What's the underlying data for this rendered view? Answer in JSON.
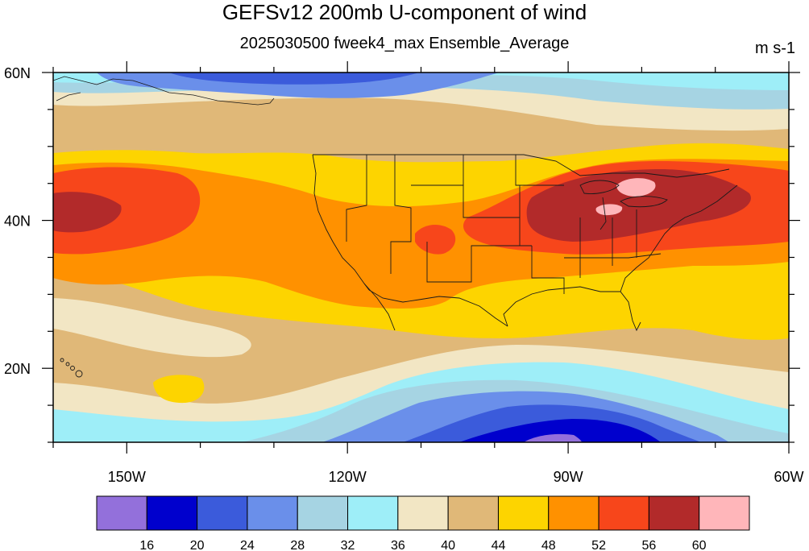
{
  "title": "GEFSv12 200mb U-component of wind",
  "subtitle": "2025030500 fweek4_max Ensemble_Average",
  "units": "m s-1",
  "chart_data": {
    "type": "heatmap",
    "title": "GEFSv12 200mb U-component of wind",
    "subtitle": "2025030500 fweek4_max Ensemble_Average",
    "units": "m s-1",
    "x_axis": {
      "range": [
        -160,
        -60
      ],
      "ticks": [
        -150,
        -120,
        -90,
        -60
      ],
      "tick_labels": [
        "150W",
        "120W",
        "90W",
        "60W"
      ]
    },
    "y_axis": {
      "range": [
        10,
        60
      ],
      "ticks": [
        20,
        40,
        60
      ],
      "tick_labels": [
        "20N",
        "40N",
        "60N"
      ]
    },
    "colorbar": {
      "levels": [
        16,
        20,
        24,
        28,
        32,
        36,
        40,
        44,
        48,
        52,
        56,
        60
      ],
      "level_labels": [
        "16",
        "20",
        "24",
        "28",
        "32",
        "36",
        "40",
        "44",
        "48",
        "52",
        "56",
        "60"
      ],
      "colors": [
        "#9370DB",
        "#0000CD",
        "#3B5BDB",
        "#6A8FEA",
        "#A6D4E3",
        "#9EEEF8",
        "#F2E6C4",
        "#E0B878",
        "#FDD400",
        "#FF9100",
        "#F7461B",
        "#B22A2A",
        "#FFB6BA"
      ]
    },
    "field_profile": {
      "description_rows_by_latitude": true,
      "latitudes": [
        60,
        57,
        54,
        51,
        48,
        45,
        42,
        40,
        38,
        36,
        34,
        32,
        30,
        28,
        26,
        24,
        22,
        20,
        18,
        16,
        14,
        12,
        10
      ],
      "values": [
        30,
        32,
        36,
        40,
        45,
        49,
        52,
        53,
        51,
        49,
        47,
        45,
        43,
        42,
        40,
        41,
        40,
        38,
        34,
        28,
        22,
        18,
        16
      ]
    }
  }
}
